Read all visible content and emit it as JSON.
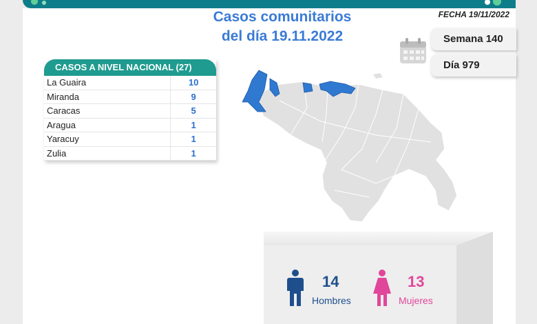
{
  "header": {
    "title_line1": "Casos comunitarios",
    "title_line2": "del día 19.11.2022",
    "fecha": "FECHA 19/11/2022",
    "semana": "Semana 140",
    "dia": "Día 979"
  },
  "table": {
    "header": "CASOS A NIVEL NACIONAL  (27)",
    "rows": [
      {
        "name": "La Guaira",
        "value": "10"
      },
      {
        "name": "Miranda",
        "value": "9"
      },
      {
        "name": "Caracas",
        "value": "5"
      },
      {
        "name": "Aragua",
        "value": "1"
      },
      {
        "name": "Yaracuy",
        "value": "1"
      },
      {
        "name": "Zulia",
        "value": "1"
      }
    ]
  },
  "gender": {
    "men_count": "14",
    "men_label": "Hombres",
    "women_count": "13",
    "women_label": "Mujeres"
  },
  "colors": {
    "accent_blue": "#3a7bd5",
    "header_green": "#1f9b8f",
    "map_gray": "#e1e1e1",
    "map_highlight": "#2f79d1",
    "men_color": "#1e4f8c",
    "women_color": "#e0479a"
  },
  "icons": [
    "calendar-icon",
    "man-icon",
    "woman-icon",
    "virus-decoration-icon"
  ]
}
